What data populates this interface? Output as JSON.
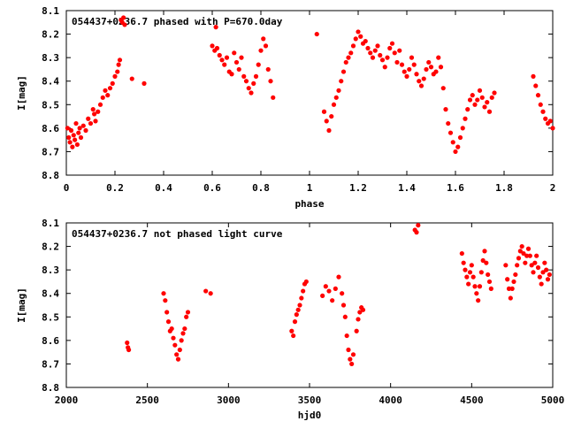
{
  "colors": {
    "points": "#ff0000",
    "axes": "#000000",
    "background": "#ffffff"
  },
  "chart_data": [
    {
      "type": "scatter",
      "title": "054437+0236.7 phased with P=670.0day",
      "xlabel": "phase",
      "ylabel": "I[mag]",
      "xlim": [
        0,
        2
      ],
      "ylim": [
        8.1,
        8.8
      ],
      "y_inverted": true,
      "grid": false,
      "legend": "none",
      "marker": "filled-circle",
      "xticks": [
        "0",
        "0.2",
        "0.4",
        "0.6",
        "0.8",
        "1",
        "1.2",
        "1.4",
        "1.6",
        "1.8",
        "2"
      ],
      "yticks": [
        "8.1",
        "8.2",
        "8.3",
        "8.4",
        "8.5",
        "8.6",
        "8.7",
        "8.8"
      ],
      "points": [
        [
          0.005,
          8.6
        ],
        [
          0.01,
          8.64
        ],
        [
          0.015,
          8.66
        ],
        [
          0.02,
          8.61
        ],
        [
          0.025,
          8.68
        ],
        [
          0.03,
          8.63
        ],
        [
          0.035,
          8.65
        ],
        [
          0.04,
          8.58
        ],
        [
          0.045,
          8.67
        ],
        [
          0.05,
          8.62
        ],
        [
          0.055,
          8.6
        ],
        [
          0.06,
          8.64
        ],
        [
          0.07,
          8.59
        ],
        [
          0.08,
          8.61
        ],
        [
          0.09,
          8.56
        ],
        [
          0.1,
          8.58
        ],
        [
          0.11,
          8.52
        ],
        [
          0.115,
          8.54
        ],
        [
          0.12,
          8.57
        ],
        [
          0.13,
          8.53
        ],
        [
          0.14,
          8.5
        ],
        [
          0.15,
          8.47
        ],
        [
          0.16,
          8.44
        ],
        [
          0.17,
          8.46
        ],
        [
          0.18,
          8.43
        ],
        [
          0.19,
          8.41
        ],
        [
          0.2,
          8.38
        ],
        [
          0.21,
          8.36
        ],
        [
          0.215,
          8.33
        ],
        [
          0.22,
          8.31
        ],
        [
          0.225,
          8.14
        ],
        [
          0.23,
          8.15
        ],
        [
          0.235,
          8.13
        ],
        [
          0.24,
          8.16
        ],
        [
          0.27,
          8.39
        ],
        [
          0.32,
          8.41
        ],
        [
          0.6,
          8.25
        ],
        [
          0.61,
          8.27
        ],
        [
          0.62,
          8.26
        ],
        [
          0.63,
          8.29
        ],
        [
          0.64,
          8.31
        ],
        [
          0.65,
          8.33
        ],
        [
          0.66,
          8.3
        ],
        [
          0.67,
          8.36
        ],
        [
          0.68,
          8.37
        ],
        [
          0.69,
          8.28
        ],
        [
          0.7,
          8.32
        ],
        [
          0.71,
          8.35
        ],
        [
          0.72,
          8.3
        ],
        [
          0.73,
          8.38
        ],
        [
          0.74,
          8.4
        ],
        [
          0.75,
          8.43
        ],
        [
          0.76,
          8.45
        ],
        [
          0.77,
          8.41
        ],
        [
          0.78,
          8.38
        ],
        [
          0.79,
          8.33
        ],
        [
          0.8,
          8.27
        ],
        [
          0.81,
          8.22
        ],
        [
          0.82,
          8.25
        ],
        [
          0.83,
          8.35
        ],
        [
          0.84,
          8.4
        ],
        [
          0.85,
          8.47
        ],
        [
          0.615,
          8.17
        ],
        [
          1.03,
          8.2
        ],
        [
          1.06,
          8.53
        ],
        [
          1.07,
          8.57
        ],
        [
          1.08,
          8.61
        ],
        [
          1.09,
          8.55
        ],
        [
          1.1,
          8.5
        ],
        [
          1.11,
          8.47
        ],
        [
          1.12,
          8.44
        ],
        [
          1.13,
          8.4
        ],
        [
          1.14,
          8.36
        ],
        [
          1.15,
          8.32
        ],
        [
          1.16,
          8.3
        ],
        [
          1.17,
          8.28
        ],
        [
          1.18,
          8.25
        ],
        [
          1.19,
          8.22
        ],
        [
          1.2,
          8.19
        ],
        [
          1.21,
          8.21
        ],
        [
          1.22,
          8.24
        ],
        [
          1.23,
          8.23
        ],
        [
          1.24,
          8.26
        ],
        [
          1.25,
          8.28
        ],
        [
          1.26,
          8.3
        ],
        [
          1.27,
          8.27
        ],
        [
          1.28,
          8.25
        ],
        [
          1.29,
          8.29
        ],
        [
          1.3,
          8.31
        ],
        [
          1.31,
          8.34
        ],
        [
          1.32,
          8.3
        ],
        [
          1.33,
          8.26
        ],
        [
          1.34,
          8.24
        ],
        [
          1.35,
          8.28
        ],
        [
          1.36,
          8.32
        ],
        [
          1.37,
          8.27
        ],
        [
          1.38,
          8.33
        ],
        [
          1.39,
          8.36
        ],
        [
          1.4,
          8.38
        ],
        [
          1.41,
          8.35
        ],
        [
          1.42,
          8.3
        ],
        [
          1.43,
          8.33
        ],
        [
          1.44,
          8.37
        ],
        [
          1.45,
          8.4
        ],
        [
          1.46,
          8.42
        ],
        [
          1.47,
          8.39
        ],
        [
          1.48,
          8.35
        ],
        [
          1.49,
          8.32
        ],
        [
          1.5,
          8.34
        ],
        [
          1.51,
          8.37
        ],
        [
          1.52,
          8.36
        ],
        [
          1.53,
          8.3
        ],
        [
          1.54,
          8.34
        ],
        [
          1.55,
          8.43
        ],
        [
          1.56,
          8.52
        ],
        [
          1.57,
          8.58
        ],
        [
          1.58,
          8.62
        ],
        [
          1.59,
          8.66
        ],
        [
          1.6,
          8.7
        ],
        [
          1.61,
          8.68
        ],
        [
          1.62,
          8.64
        ],
        [
          1.63,
          8.6
        ],
        [
          1.64,
          8.56
        ],
        [
          1.65,
          8.52
        ],
        [
          1.66,
          8.48
        ],
        [
          1.67,
          8.46
        ],
        [
          1.68,
          8.5
        ],
        [
          1.69,
          8.48
        ],
        [
          1.7,
          8.44
        ],
        [
          1.71,
          8.47
        ],
        [
          1.72,
          8.51
        ],
        [
          1.73,
          8.49
        ],
        [
          1.74,
          8.53
        ],
        [
          1.75,
          8.47
        ],
        [
          1.76,
          8.45
        ],
        [
          1.92,
          8.38
        ],
        [
          1.93,
          8.42
        ],
        [
          1.94,
          8.46
        ],
        [
          1.95,
          8.5
        ],
        [
          1.96,
          8.53
        ],
        [
          1.97,
          8.56
        ],
        [
          1.98,
          8.58
        ],
        [
          1.99,
          8.57
        ],
        [
          2.0,
          8.6
        ]
      ]
    },
    {
      "type": "scatter",
      "title": "054437+0236.7 not phased light curve",
      "xlabel": "hjd0",
      "ylabel": "I[mag]",
      "xlim": [
        2000,
        5000
      ],
      "ylim": [
        8.1,
        8.8
      ],
      "y_inverted": true,
      "grid": false,
      "legend": "none",
      "marker": "filled-circle",
      "xticks": [
        "2000",
        "2500",
        "3000",
        "3500",
        "4000",
        "4500",
        "5000"
      ],
      "yticks": [
        "8.1",
        "8.2",
        "8.3",
        "8.4",
        "8.5",
        "8.6",
        "8.7",
        "8.8"
      ],
      "points": [
        [
          2375,
          8.61
        ],
        [
          2380,
          8.63
        ],
        [
          2385,
          8.64
        ],
        [
          2600,
          8.4
        ],
        [
          2610,
          8.43
        ],
        [
          2620,
          8.48
        ],
        [
          2630,
          8.52
        ],
        [
          2640,
          8.56
        ],
        [
          2650,
          8.55
        ],
        [
          2660,
          8.59
        ],
        [
          2670,
          8.62
        ],
        [
          2680,
          8.66
        ],
        [
          2690,
          8.68
        ],
        [
          2700,
          8.64
        ],
        [
          2710,
          8.6
        ],
        [
          2720,
          8.57
        ],
        [
          2730,
          8.55
        ],
        [
          2740,
          8.5
        ],
        [
          2750,
          8.48
        ],
        [
          2860,
          8.39
        ],
        [
          2890,
          8.4
        ],
        [
          3390,
          8.56
        ],
        [
          3400,
          8.58
        ],
        [
          3410,
          8.52
        ],
        [
          3420,
          8.49
        ],
        [
          3430,
          8.47
        ],
        [
          3440,
          8.45
        ],
        [
          3450,
          8.42
        ],
        [
          3460,
          8.39
        ],
        [
          3470,
          8.36
        ],
        [
          3480,
          8.35
        ],
        [
          3580,
          8.41
        ],
        [
          3600,
          8.37
        ],
        [
          3620,
          8.39
        ],
        [
          3640,
          8.43
        ],
        [
          3660,
          8.38
        ],
        [
          3680,
          8.33
        ],
        [
          3700,
          8.4
        ],
        [
          3710,
          8.45
        ],
        [
          3720,
          8.5
        ],
        [
          3730,
          8.58
        ],
        [
          3740,
          8.64
        ],
        [
          3750,
          8.68
        ],
        [
          3760,
          8.7
        ],
        [
          3770,
          8.66
        ],
        [
          3790,
          8.56
        ],
        [
          3800,
          8.51
        ],
        [
          3810,
          8.48
        ],
        [
          3820,
          8.46
        ],
        [
          3830,
          8.47
        ],
        [
          4150,
          8.13
        ],
        [
          4160,
          8.14
        ],
        [
          4170,
          8.11
        ],
        [
          4440,
          8.23
        ],
        [
          4450,
          8.27
        ],
        [
          4460,
          8.3
        ],
        [
          4470,
          8.33
        ],
        [
          4480,
          8.36
        ],
        [
          4490,
          8.31
        ],
        [
          4500,
          8.28
        ],
        [
          4510,
          8.33
        ],
        [
          4520,
          8.37
        ],
        [
          4530,
          8.4
        ],
        [
          4540,
          8.43
        ],
        [
          4550,
          8.37
        ],
        [
          4560,
          8.31
        ],
        [
          4570,
          8.26
        ],
        [
          4580,
          8.22
        ],
        [
          4590,
          8.27
        ],
        [
          4600,
          8.32
        ],
        [
          4610,
          8.35
        ],
        [
          4620,
          8.38
        ],
        [
          4710,
          8.28
        ],
        [
          4720,
          8.34
        ],
        [
          4730,
          8.38
        ],
        [
          4740,
          8.42
        ],
        [
          4750,
          8.38
        ],
        [
          4760,
          8.35
        ],
        [
          4770,
          8.32
        ],
        [
          4780,
          8.28
        ],
        [
          4790,
          8.25
        ],
        [
          4800,
          8.22
        ],
        [
          4810,
          8.2
        ],
        [
          4820,
          8.23
        ],
        [
          4830,
          8.27
        ],
        [
          4840,
          8.24
        ],
        [
          4850,
          8.21
        ],
        [
          4860,
          8.24
        ],
        [
          4870,
          8.28
        ],
        [
          4880,
          8.31
        ],
        [
          4890,
          8.27
        ],
        [
          4900,
          8.24
        ],
        [
          4910,
          8.29
        ],
        [
          4920,
          8.33
        ],
        [
          4930,
          8.36
        ],
        [
          4940,
          8.31
        ],
        [
          4950,
          8.27
        ],
        [
          4960,
          8.3
        ],
        [
          4970,
          8.34
        ],
        [
          4980,
          8.32
        ]
      ]
    }
  ]
}
